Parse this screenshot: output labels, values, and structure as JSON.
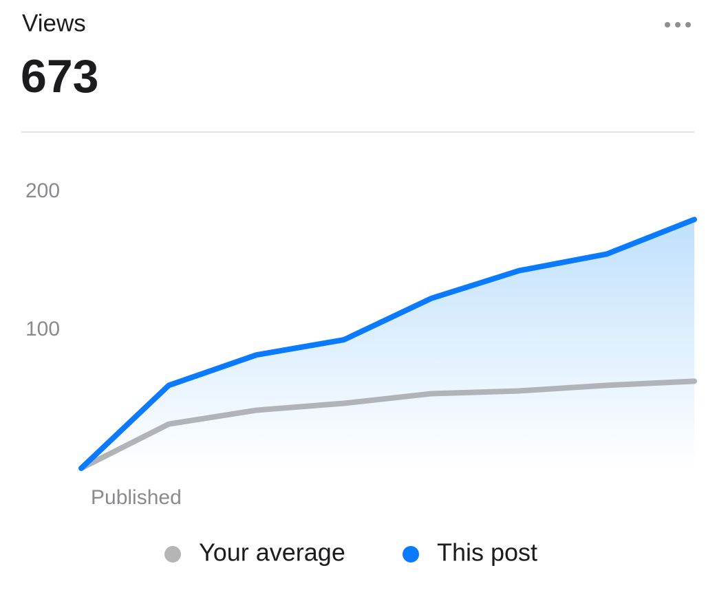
{
  "header": {
    "title": "Views",
    "value": 673
  },
  "chart_data": {
    "type": "line",
    "categories": [
      "Published",
      null,
      null,
      null,
      null,
      null,
      null,
      null
    ],
    "series": [
      {
        "name": "Your average",
        "color": "#b0b4b9",
        "values": [
          0,
          32,
          42,
          47,
          54,
          56,
          60,
          63
        ]
      },
      {
        "name": "This post",
        "color": "#0a7aff",
        "values": [
          0,
          60,
          82,
          93,
          123,
          143,
          155,
          180
        ]
      }
    ],
    "area_series": 1,
    "ylim": [
      0,
      200
    ],
    "yticks": [
      100,
      200
    ],
    "grid": false
  }
}
